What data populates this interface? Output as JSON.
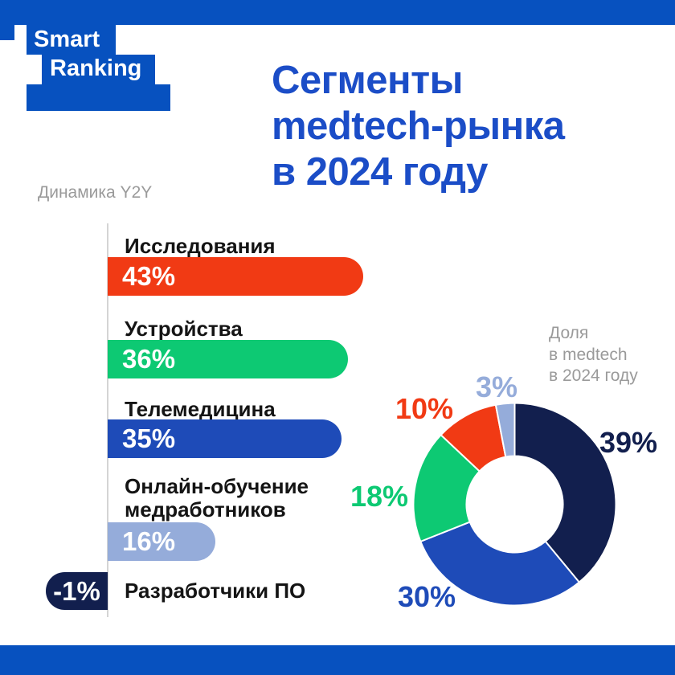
{
  "logo": {
    "line1": "Smart",
    "line2": "Ranking"
  },
  "header": {
    "title": "Сегменты\nmedtech-рынка\nв 2024 году"
  },
  "colors": {
    "brand_blue": "#0751BF",
    "title_blue": "#1B4DC7",
    "red": "#F13A14",
    "green": "#0DC973",
    "blue": "#1E4BB8",
    "light_blue": "#95ACDA",
    "navy": "#121F4E",
    "caption_gray": "#9A9A9A"
  },
  "bar_section": {
    "caption": "Динамика Y2Y"
  },
  "donut_section": {
    "caption": "Доля\nв medtech\nв 2024 году"
  },
  "chart_data": [
    {
      "type": "bar",
      "orientation": "horizontal",
      "title": "Динамика Y2Y",
      "unit": "%",
      "items": [
        {
          "label": "Исследования",
          "value": 43,
          "value_label": "43%",
          "color": "#F13A14"
        },
        {
          "label": "Устройства",
          "value": 36,
          "value_label": "36%",
          "color": "#0DC973"
        },
        {
          "label": "Телемедицина",
          "value": 35,
          "value_label": "35%",
          "color": "#1E4BB8"
        },
        {
          "label": "Онлайн-обучение\nмедработников",
          "value": 16,
          "value_label": "16%",
          "color": "#95ACDA"
        },
        {
          "label": "Разработчики ПО",
          "value": -1,
          "value_label": "-1%",
          "color": "#121F4E"
        }
      ]
    },
    {
      "type": "pie",
      "subtype": "donut",
      "title": "Доля в medtech в 2024 году",
      "unit": "%",
      "segments": [
        {
          "label": "Разработчики ПО",
          "value": 39,
          "value_label": "39%",
          "color": "#121F4E"
        },
        {
          "label": "Телемедицина",
          "value": 30,
          "value_label": "30%",
          "color": "#1E4BB8"
        },
        {
          "label": "Устройства",
          "value": 18,
          "value_label": "18%",
          "color": "#0DC973"
        },
        {
          "label": "Исследования",
          "value": 10,
          "value_label": "10%",
          "color": "#F13A14"
        },
        {
          "label": "Онлайн-обучение медработников",
          "value": 3,
          "value_label": "3%",
          "color": "#95ACDA"
        }
      ]
    }
  ]
}
